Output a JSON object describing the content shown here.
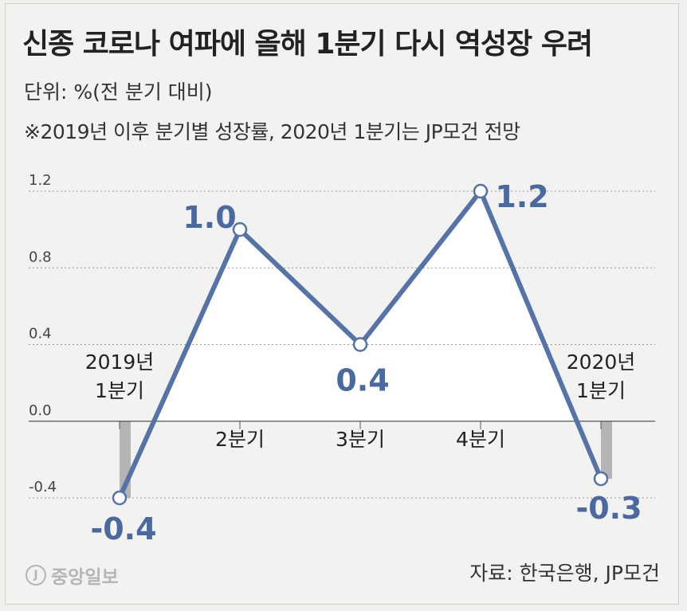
{
  "header": {
    "title": "신종 코로나 여파에 올해 1분기 다시 역성장 우려",
    "unit": "단위: %(전 분기 대비)",
    "note": "※2019년 이후 분기별 성장률, 2020년 1분기는 JP모건 전망"
  },
  "footer": {
    "logo_text": "중앙일보",
    "logo_mark": "J",
    "source": "자료: 한국은행, JP모건"
  },
  "colors": {
    "line": "#5573a6",
    "label": "#4a6a9f",
    "negative_bar": "#a9a9a9",
    "grid": "#9a9a9a"
  },
  "chart_data": {
    "type": "line",
    "categories": [
      "2019년\n1분기",
      "2분기",
      "3분기",
      "4분기",
      "2020년\n1분기"
    ],
    "values": [
      -0.4,
      1.0,
      0.4,
      1.2,
      -0.3
    ],
    "data_labels": [
      "-0.4",
      "1.0",
      "0.4",
      "1.2",
      "-0.3"
    ],
    "yticks": [
      1.2,
      0.8,
      0.4,
      0.0,
      -0.4
    ],
    "ytick_labels": [
      "1.2",
      "0.8",
      "0.4",
      "0.0",
      "-0.4"
    ],
    "ylim": [
      -0.4,
      1.2
    ],
    "grid": true,
    "title": "",
    "xlabel": "",
    "ylabel": ""
  }
}
